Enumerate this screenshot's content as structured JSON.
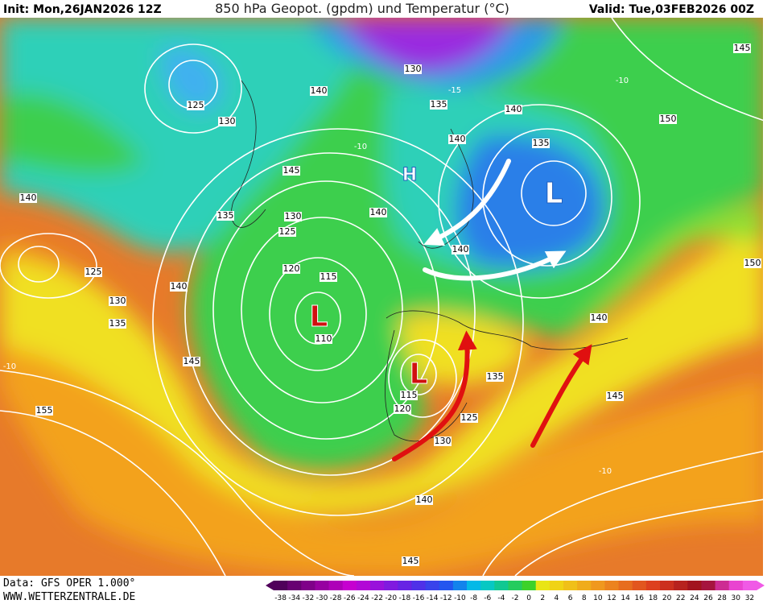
{
  "header": {
    "init": "Init: Mon,26JAN2026 12Z",
    "title": "850 hPa Geopot. (gpdm) und Temperatur (°C)",
    "valid": "Valid: Tue,03FEB2026 00Z"
  },
  "footer": {
    "data": "Data: GFS OPER 1.000°",
    "site": "WWW.WETTERZENTRALE.DE"
  },
  "pressure_centers": [
    "L",
    "L",
    "L",
    "H"
  ],
  "contour_labels": [
    "125",
    "130",
    "140",
    "130",
    "135",
    "140",
    "145",
    "150",
    "135",
    "140",
    "145",
    "140",
    "135",
    "130",
    "140",
    "125",
    "140",
    "120",
    "115",
    "125",
    "130",
    "140",
    "135",
    "150",
    "140",
    "110",
    "145",
    "135",
    "115",
    "120",
    "125",
    "145",
    "130",
    "155",
    "140",
    "145",
    "-10",
    "-10",
    "-10",
    "-10",
    "-15"
  ],
  "colorbar": {
    "labels": [
      -38,
      -34,
      -32,
      -30,
      -28,
      -26,
      -24,
      -22,
      -20,
      -18,
      -16,
      -14,
      -12,
      -10,
      -8,
      -6,
      -4,
      -2,
      0,
      2,
      4,
      6,
      8,
      10,
      12,
      14,
      16,
      18,
      20,
      22,
      24,
      26,
      28,
      30,
      32
    ]
  }
}
